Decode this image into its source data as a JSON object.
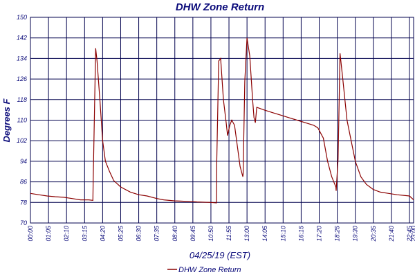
{
  "chart_data": {
    "type": "line",
    "title": "DHW Zone Return",
    "xlabel": "04/25/19 (EST)",
    "ylabel": "Degrees F",
    "ylim": [
      70,
      150
    ],
    "y_ticks": [
      "70",
      "78",
      "86",
      "94",
      "102",
      "110",
      "118",
      "126",
      "134",
      "142",
      "150"
    ],
    "x_ticks": [
      "00:00",
      "01:05",
      "02:10",
      "03:15",
      "04:20",
      "05:25",
      "06:30",
      "07:35",
      "08:40",
      "09:45",
      "10:50",
      "11:55",
      "13:00",
      "14:05",
      "15:10",
      "16:15",
      "17:20",
      "18:25",
      "19:30",
      "20:35",
      "21:40",
      "22:45",
      "23:00"
    ],
    "grid": true,
    "legend_position": "bottom-center",
    "colors": {
      "series": "#8b0000",
      "grid": "#00004d",
      "text": "#0a0a7a"
    },
    "series": [
      {
        "name": "DHW Zone Return",
        "x": [
          "00:00",
          "00:30",
          "01:00",
          "01:30",
          "02:00",
          "02:30",
          "03:00",
          "03:30",
          "03:45",
          "03:46",
          "03:55",
          "04:00",
          "04:10",
          "04:20",
          "04:30",
          "04:45",
          "05:00",
          "05:25",
          "06:00",
          "06:30",
          "07:00",
          "07:35",
          "08:00",
          "08:40",
          "09:00",
          "09:45",
          "10:00",
          "10:50",
          "11:10",
          "11:11",
          "11:18",
          "11:25",
          "11:35",
          "11:45",
          "11:50",
          "11:58",
          "12:05",
          "12:15",
          "12:25",
          "12:35",
          "12:45",
          "12:46",
          "12:52",
          "13:00",
          "13:10",
          "13:20",
          "13:25",
          "13:30",
          "13:35",
          "14:00",
          "14:30",
          "15:00",
          "15:30",
          "16:00",
          "16:30",
          "17:00",
          "17:15",
          "17:35",
          "17:50",
          "18:05",
          "18:20",
          "18:21",
          "18:28",
          "18:35",
          "18:45",
          "19:00",
          "19:15",
          "19:30",
          "19:50",
          "20:10",
          "20:35",
          "21:00",
          "21:30",
          "22:00",
          "22:45",
          "23:00"
        ],
        "values": [
          81.5,
          81.0,
          80.5,
          80.2,
          80.0,
          79.5,
          79.0,
          79.0,
          78.8,
          86.0,
          138.0,
          133.0,
          118.0,
          102.0,
          94.0,
          90.0,
          86.5,
          84.0,
          82.0,
          81.0,
          80.5,
          79.5,
          79.0,
          78.6,
          78.5,
          78.3,
          78.2,
          78.0,
          77.8,
          94.0,
          133.0,
          134.0,
          118.0,
          109.0,
          104.0,
          108.0,
          110.0,
          108.0,
          100.0,
          92.0,
          88.0,
          89.0,
          125.0,
          142.0,
          135.0,
          118.0,
          111.0,
          109.0,
          115.0,
          114.0,
          113.0,
          112.0,
          111.0,
          110.0,
          109.0,
          108.0,
          107.0,
          103.0,
          94.0,
          88.0,
          84.0,
          82.5,
          95.0,
          136.0,
          126.0,
          110.0,
          102.0,
          94.0,
          88.0,
          85.0,
          83.0,
          82.0,
          81.5,
          81.0,
          80.5,
          79.0
        ]
      }
    ]
  }
}
